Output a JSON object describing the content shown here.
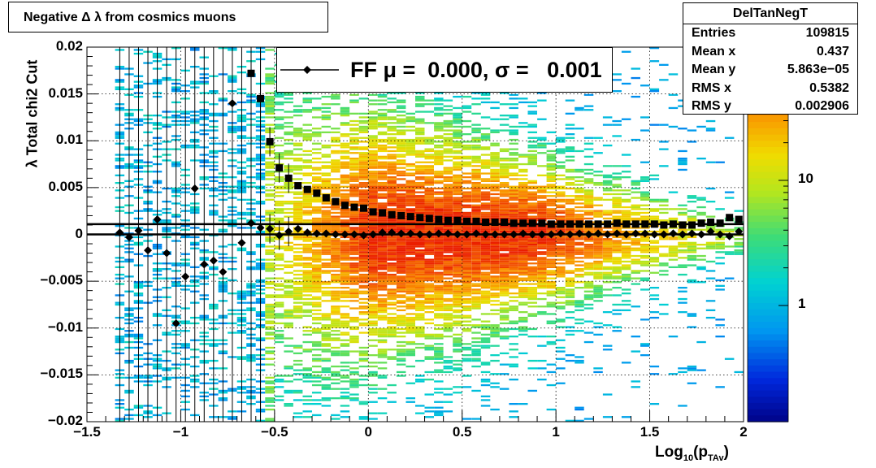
{
  "title": "Negative Δ λ from cosmics muons",
  "stats": {
    "name": "DelTanNegT",
    "rows": [
      {
        "label": "Entries",
        "value": "109815"
      },
      {
        "label": "Mean x",
        "value": "0.437"
      },
      {
        "label": "Mean y",
        "value": "5.863e−05"
      },
      {
        "label": "RMS x",
        "value": "0.5382"
      },
      {
        "label": "RMS y",
        "value": "0.002906"
      }
    ]
  },
  "legend": {
    "label": "FF μ =  0.000, σ =   0.001"
  },
  "axes": {
    "xlabel_main": "Log",
    "xlabel_sub": "10",
    "xlabel_paren": "(p",
    "xlabel_sub2": "TAv",
    "xlabel_close": ")",
    "ylabel": "λ  Total chi2 Cut",
    "xlim": [
      -1.5,
      2
    ],
    "ylim": [
      -0.02,
      0.02
    ],
    "xticks": [
      "−1.5",
      "−1",
      "−0.5",
      "0",
      "0.5",
      "1",
      "1.5",
      "2"
    ],
    "yticks": [
      "−0.02",
      "−0.015",
      "−0.01",
      "−0.005",
      "0",
      "0.005",
      "0.01",
      "0.015",
      "0.02"
    ],
    "zticks": [
      "1",
      "10"
    ],
    "grid": true
  },
  "chart_data": {
    "type": "heatmap",
    "title": "Negative Δ λ from cosmics muons",
    "xlabel": "Log10(pTAv)",
    "ylabel": "λ  Total chi2 Cut",
    "xlim": [
      -1.5,
      2
    ],
    "ylim": [
      -0.02,
      0.02
    ],
    "zscale": "log",
    "series": [
      {
        "name": "sigma",
        "marker": "square",
        "x": [
          -0.625,
          -0.575,
          -0.525,
          -0.475,
          -0.425,
          -0.375,
          -0.325,
          -0.275,
          -0.225,
          -0.175,
          -0.125,
          -0.075,
          -0.025,
          0.025,
          0.075,
          0.125,
          0.175,
          0.225,
          0.275,
          0.325,
          0.375,
          0.425,
          0.475,
          0.525,
          0.575,
          0.625,
          0.675,
          0.725,
          0.775,
          0.825,
          0.875,
          0.925,
          0.975,
          1.025,
          1.075,
          1.125,
          1.175,
          1.225,
          1.275,
          1.325,
          1.375,
          1.425,
          1.475,
          1.525,
          1.575,
          1.625,
          1.675,
          1.725,
          1.775,
          1.825,
          1.875,
          1.925,
          1.975
        ],
        "y": [
          0.0172,
          0.0145,
          0.0099,
          0.0071,
          0.006,
          0.0052,
          0.0048,
          0.0044,
          0.0039,
          0.0035,
          0.0031,
          0.0029,
          0.0028,
          0.0024,
          0.0023,
          0.0021,
          0.002,
          0.0019,
          0.0018,
          0.0017,
          0.0016,
          0.0015,
          0.0015,
          0.0014,
          0.0014,
          0.0013,
          0.0013,
          0.0013,
          0.0012,
          0.0012,
          0.0012,
          0.0012,
          0.0011,
          0.0011,
          0.0011,
          0.0011,
          0.0011,
          0.0011,
          0.0011,
          0.0012,
          0.0011,
          0.0011,
          0.0011,
          0.0011,
          0.001,
          0.0011,
          0.001,
          0.001,
          0.0012,
          0.0013,
          0.0012,
          0.0018,
          0.0016
        ]
      },
      {
        "name": "mean",
        "marker": "diamond",
        "x": [
          -1.325,
          -1.275,
          -1.225,
          -1.175,
          -1.125,
          -1.075,
          -1.025,
          -0.975,
          -0.925,
          -0.875,
          -0.825,
          -0.775,
          -0.725,
          -0.675,
          -0.625,
          -0.575,
          -0.525,
          -0.475,
          -0.425,
          -0.375,
          -0.325,
          -0.275,
          -0.225,
          -0.175,
          -0.125,
          -0.075,
          -0.025,
          0.025,
          0.075,
          0.125,
          0.175,
          0.225,
          0.275,
          0.325,
          0.375,
          0.425,
          0.475,
          0.525,
          0.575,
          0.625,
          0.675,
          0.725,
          0.775,
          0.825,
          0.875,
          0.925,
          0.975,
          1.025,
          1.075,
          1.125,
          1.175,
          1.225,
          1.275,
          1.325,
          1.375,
          1.425,
          1.475,
          1.525,
          1.575,
          1.625,
          1.675,
          1.725,
          1.775,
          1.825,
          1.875,
          1.925,
          1.975
        ],
        "y": [
          0.0002,
          -0.0003,
          0.0004,
          -0.0017,
          0.0016,
          -0.002,
          -0.0095,
          -0.0045,
          0.0049,
          -0.0032,
          -0.0028,
          -0.004,
          0.014,
          -0.0009,
          0.0012,
          0.0007,
          0.0006,
          -0.0001,
          0.0003,
          0.0006,
          0.0002,
          0.0001,
          0.0001,
          0.0,
          0.0,
          0.0,
          -0.0001,
          0.0,
          0.0002,
          0.0002,
          0.0001,
          0.0001,
          0.0,
          0.0,
          0.0001,
          0.0001,
          0.0,
          0.0,
          0.0001,
          0.0,
          0.0,
          0.0,
          0.0,
          0.0001,
          0.0,
          0.0,
          0.0,
          0.0001,
          0.0,
          0.0001,
          0.0,
          0.0001,
          0.0,
          0.0001,
          0.0,
          0.0001,
          0.0001,
          0.0,
          0.0,
          0.0001,
          0.0,
          0.0001,
          0.0,
          0.0003,
          0.0,
          -0.0002,
          0.0003
        ]
      }
    ],
    "lines": [
      {
        "name": "mean-fit",
        "y": 0.0
      },
      {
        "name": "sigma-fit",
        "y": 0.0011
      }
    ]
  }
}
